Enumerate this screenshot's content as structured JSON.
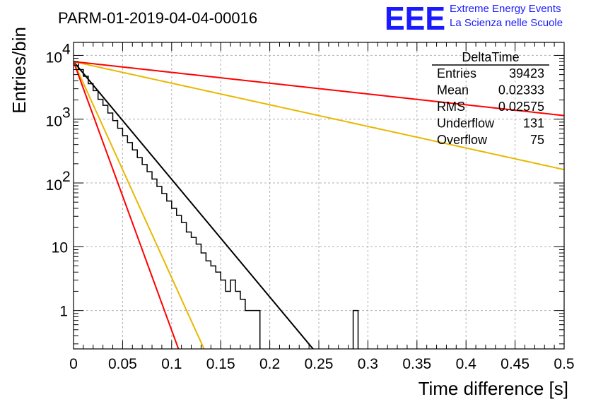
{
  "chart_data": {
    "type": "histogram",
    "title": "PARM-01-2019-04-04-00016",
    "xlabel": "Time difference [s]",
    "ylabel": "Entries/bin",
    "xlim": [
      0,
      0.5
    ],
    "ylim": [
      0.25,
      16000
    ],
    "y_scale": "log",
    "grid": true,
    "x_ticks": [
      "0",
      "0.05",
      "0.1",
      "0.15",
      "0.2",
      "0.25",
      "0.3",
      "0.35",
      "0.4",
      "0.45",
      "0.5"
    ],
    "y_ticks": [
      {
        "value": 1,
        "base": "1",
        "exp": ""
      },
      {
        "value": 10,
        "base": "10",
        "exp": ""
      },
      {
        "value": 100,
        "base": "10",
        "exp": "2"
      },
      {
        "value": 1000,
        "base": "10",
        "exp": "3"
      },
      {
        "value": 10000,
        "base": "10",
        "exp": "4"
      }
    ],
    "stats_box": {
      "title": "DeltaTime",
      "rows": [
        {
          "label": "Entries",
          "value": "39423"
        },
        {
          "label": "Mean",
          "value": "0.02333"
        },
        {
          "label": "RMS",
          "value": "0.02575"
        },
        {
          "label": "Underflow",
          "value": "131"
        },
        {
          "label": "Overflow",
          "value": "75"
        }
      ]
    },
    "histogram": {
      "bin_width": 0.005,
      "bin_start": 0,
      "values": [
        7800,
        6000,
        4700,
        3600,
        2800,
        2050,
        1650,
        1250,
        950,
        720,
        550,
        430,
        330,
        250,
        195,
        150,
        115,
        88,
        68,
        52,
        40,
        31,
        24,
        17,
        14,
        11,
        8,
        6,
        5,
        4,
        3,
        2,
        3,
        2,
        1.5,
        1,
        1,
        1,
        0,
        0,
        0,
        0,
        0,
        0,
        0,
        0,
        0,
        0,
        0,
        0,
        0,
        0,
        0,
        0,
        0,
        0,
        0,
        1,
        0,
        0,
        0,
        0,
        0,
        0,
        0,
        0,
        0,
        0,
        0,
        0,
        0,
        0,
        0,
        0,
        0,
        0,
        0,
        0,
        0,
        0,
        0,
        0,
        0,
        0,
        0,
        0,
        0,
        0,
        0,
        0,
        0,
        0,
        0,
        0,
        0,
        0,
        0,
        0,
        0,
        0
      ]
    },
    "lines": [
      {
        "color": "#000000",
        "amplitude": 8000,
        "slope": -42.5
      },
      {
        "color": "#e8b800",
        "amplitude": 8000,
        "slope": -78
      },
      {
        "color": "#ff0000",
        "amplitude": 8000,
        "slope": -97
      },
      {
        "color": "#e8b800",
        "amplitude": 8000,
        "slope": -7.8
      },
      {
        "color": "#ff0000",
        "amplitude": 8000,
        "slope": -3.9
      }
    ]
  },
  "logo": {
    "mark": "EEE",
    "line1": "Extreme Energy Events",
    "line2": "La Scienza nelle Scuole",
    "color": "#1a1aff"
  }
}
